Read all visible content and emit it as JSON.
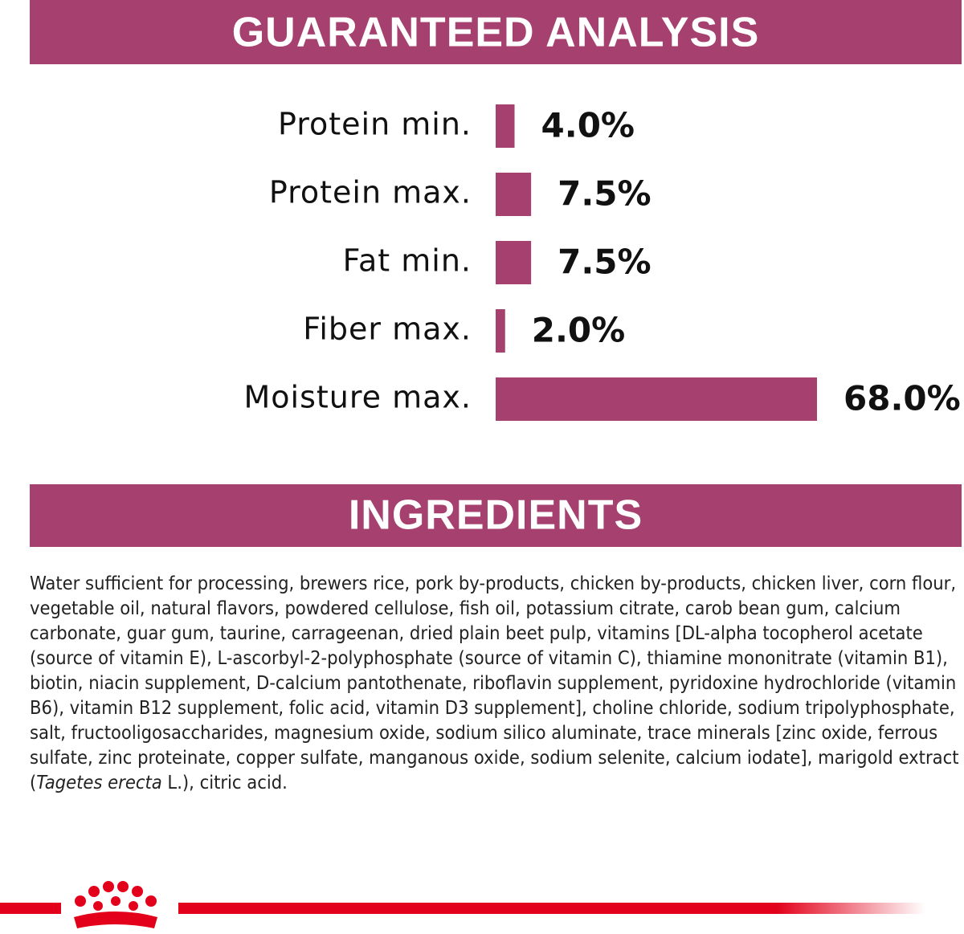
{
  "header": {
    "title": "GUARANTEED ANALYSIS"
  },
  "chart_data": {
    "type": "bar",
    "orientation": "horizontal",
    "categories": [
      "Protein min.",
      "Protein max.",
      "Fat min.",
      "Fiber max.",
      "Moisture max."
    ],
    "values": [
      4.0,
      7.5,
      7.5,
      2.0,
      68.0
    ],
    "value_labels": [
      "4.0%",
      "7.5%",
      "7.5%",
      "2.0%",
      "68.0%"
    ],
    "color": "#a6416f"
  },
  "ingredients": {
    "title": "INGREDIENTS",
    "text_before": "Water sufficient for processing, brewers rice, pork by-products, chicken by-products, chicken liver, corn flour, vegetable oil, natural flavors, powdered cellulose, fish oil, potassium citrate, carob bean gum, calcium carbonate, guar gum, taurine, carrageenan, dried plain beet pulp, vitamins [DL-alpha tocopherol acetate (source of vitamin E), L-ascorbyl-2-polyphosphate (source of vitamin C), thiamine mononitrate (vitamin B1), biotin, niacin supplement, D-calcium pantothenate, riboflavin supplement, pyridoxine hydrochloride (vitamin B6), vitamin B12 supplement, folic acid, vitamin D3 supplement], choline chloride, sodium tripolyphosphate, salt, fructooligosaccharides, magnesium oxide, sodium silico aluminate, trace minerals [zinc oxide, ferrous sulfate, zinc proteinate, copper sulfate, manganous oxide, sodium selenite, calcium iodate], marigold extract (",
    "italic": "Tagetes erecta",
    "text_after": " L.), citric acid."
  }
}
